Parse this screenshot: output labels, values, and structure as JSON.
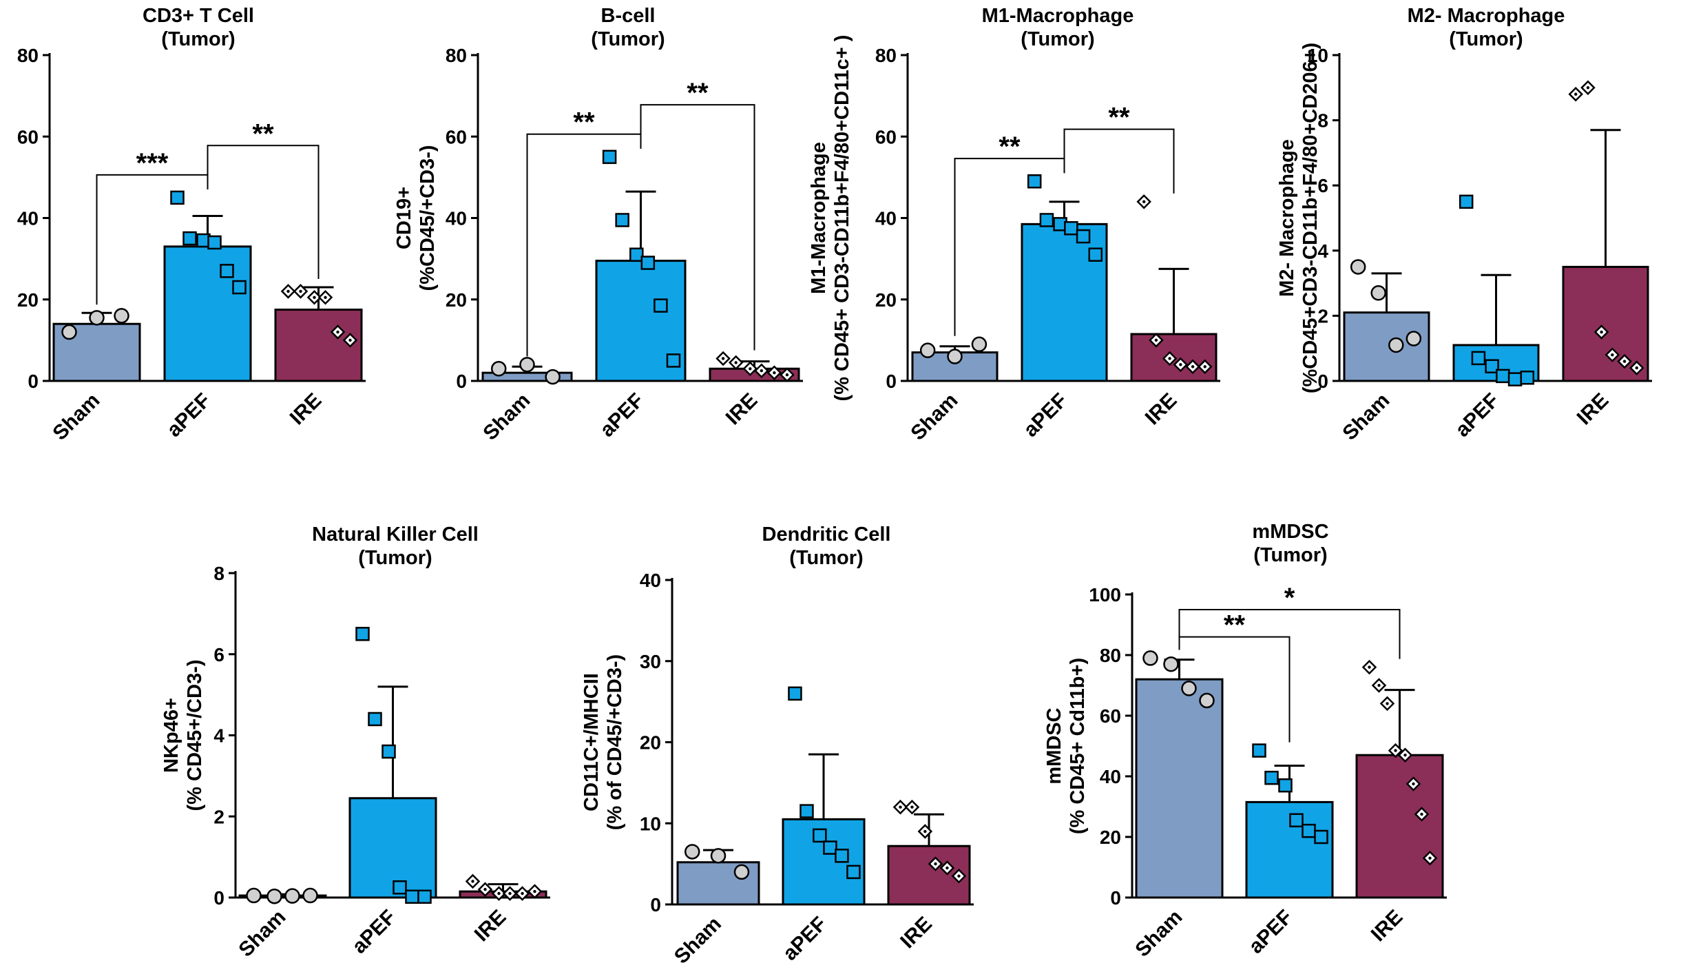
{
  "figure": {
    "colors": {
      "Sham": "#7f9cc4",
      "aPEF": "#10a4e6",
      "IRE": "#8c2f58",
      "sham_marker": "#d0d0d0",
      "ire_marker": "#ffffff"
    },
    "panels": [
      {
        "title": [
          "CD3+ T Cell",
          "(Tumor)"
        ],
        "ylabel": [],
        "ylim": [
          0,
          80
        ],
        "yticks": [
          0,
          20,
          40,
          60,
          80
        ],
        "groups": [
          {
            "name": "Sham",
            "mean": 14,
            "sd": 2.7,
            "points": [
              12,
              15.5,
              16
            ]
          },
          {
            "name": "aPEF",
            "mean": 33,
            "sd": 7.5,
            "points": [
              45,
              35,
              34.5,
              34,
              27,
              23
            ]
          },
          {
            "name": "IRE",
            "mean": 17.5,
            "sd": 5.5,
            "points": [
              22,
              22,
              20.5,
              20.5,
              12,
              10
            ]
          }
        ],
        "sig": [
          {
            "from": 0,
            "to": 1,
            "label": "***"
          },
          {
            "from": 1,
            "to": 2,
            "label": "**"
          }
        ]
      },
      {
        "title": [
          "B-cell",
          "(Tumor)"
        ],
        "ylabel": [
          "CD19+",
          "(%CD45/+CD3-)"
        ],
        "ylim": [
          0,
          80
        ],
        "yticks": [
          0,
          20,
          40,
          60,
          80
        ],
        "groups": [
          {
            "name": "Sham",
            "mean": 2,
            "sd": 1.5,
            "points": [
              3,
              4,
              1
            ]
          },
          {
            "name": "aPEF",
            "mean": 29.5,
            "sd": 17,
            "points": [
              55,
              39.5,
              31,
              29,
              18.5,
              5
            ]
          },
          {
            "name": "IRE",
            "mean": 3,
            "sd": 1.8,
            "points": [
              5.5,
              4.5,
              3,
              2.5,
              2,
              1.5
            ]
          }
        ],
        "sig": [
          {
            "from": 0,
            "to": 1,
            "label": "**"
          },
          {
            "from": 1,
            "to": 2,
            "label": "**"
          }
        ]
      },
      {
        "title": [
          "M1-Macrophage",
          "(Tumor)"
        ],
        "ylabel": [
          "M1-Macrophage",
          "(% CD45+ CD3-CD11b+F4/80+CD11c+ )"
        ],
        "ylim": [
          0,
          80
        ],
        "yticks": [
          0,
          20,
          40,
          60,
          80
        ],
        "groups": [
          {
            "name": "Sham",
            "mean": 7,
            "sd": 1.5,
            "points": [
              7.5,
              6,
              9
            ]
          },
          {
            "name": "aPEF",
            "mean": 38.5,
            "sd": 5.5,
            "points": [
              49,
              39.5,
              38.5,
              37.5,
              35.5,
              31
            ]
          },
          {
            "name": "IRE",
            "mean": 11.5,
            "sd": 16,
            "points": [
              44,
              10,
              5.5,
              4,
              3.5,
              3.5
            ]
          }
        ],
        "sig": [
          {
            "from": 0,
            "to": 1,
            "label": "**"
          },
          {
            "from": 1,
            "to": 2,
            "label": "**"
          }
        ]
      },
      {
        "title": [
          "M2- Macrophage",
          "(Tumor)"
        ],
        "ylabel": [
          "M2- Macrophage",
          "(%CD45+CD3-CD11b+F4/80+CD206+)"
        ],
        "ylim": [
          0,
          10
        ],
        "yticks": [
          0,
          2,
          4,
          6,
          8,
          10
        ],
        "groups": [
          {
            "name": "Sham",
            "mean": 2.1,
            "sd": 1.2,
            "points": [
              3.5,
              2.7,
              1.1,
              1.3
            ]
          },
          {
            "name": "aPEF",
            "mean": 1.1,
            "sd": 2.15,
            "points": [
              5.5,
              0.7,
              0.45,
              0.15,
              0.05,
              0.1
            ]
          },
          {
            "name": "IRE",
            "mean": 3.5,
            "sd": 4.2,
            "points": [
              8.8,
              9,
              1.5,
              0.8,
              0.6,
              0.4
            ]
          }
        ],
        "sig": []
      },
      {
        "title": [
          "Natural Killer Cell",
          "(Tumor)"
        ],
        "ylabel": [
          "NKp46+",
          "(% CD45+/CD3-)"
        ],
        "ylim": [
          0,
          8
        ],
        "yticks": [
          0,
          2,
          4,
          6,
          8
        ],
        "groups": [
          {
            "name": "Sham",
            "mean": 0.05,
            "sd": 0.03,
            "points": [
              0.05,
              0.03,
              0.04,
              0.05
            ]
          },
          {
            "name": "aPEF",
            "mean": 2.45,
            "sd": 2.75,
            "points": [
              6.5,
              4.4,
              3.6,
              0.25,
              0.02,
              0.02
            ]
          },
          {
            "name": "IRE",
            "mean": 0.15,
            "sd": 0.18,
            "points": [
              0.4,
              0.2,
              0.1,
              0.1,
              0.1,
              0.15
            ]
          }
        ],
        "sig": []
      },
      {
        "title": [
          "Dendritic Cell",
          "(Tumor)"
        ],
        "ylabel": [
          "CD11C+/MHCII",
          "(% of CD45/+CD3-)"
        ],
        "ylim": [
          0,
          40
        ],
        "yticks": [
          0,
          10,
          20,
          30,
          40
        ],
        "groups": [
          {
            "name": "Sham",
            "mean": 5.2,
            "sd": 1.5,
            "points": [
              6.5,
              6,
              4
            ]
          },
          {
            "name": "aPEF",
            "mean": 10.5,
            "sd": 8,
            "points": [
              26,
              11.5,
              8.5,
              7,
              6,
              4
            ]
          },
          {
            "name": "IRE",
            "mean": 7.2,
            "sd": 3.9,
            "points": [
              12,
              12,
              9,
              5,
              4.5,
              3.5
            ]
          }
        ],
        "sig": []
      },
      {
        "title": [
          "mMDSC",
          "(Tumor)"
        ],
        "ylabel": [
          "mMDSC",
          "(% CD45+ Cd11b+)"
        ],
        "ylim": [
          0,
          100
        ],
        "yticks": [
          0,
          20,
          40,
          60,
          80,
          100
        ],
        "groups": [
          {
            "name": "Sham",
            "mean": 72,
            "sd": 6.5,
            "points": [
              79,
              77,
              69,
              65
            ]
          },
          {
            "name": "aPEF",
            "mean": 31.5,
            "sd": 12,
            "points": [
              48.5,
              39.5,
              37,
              25.5,
              22,
              20
            ]
          },
          {
            "name": "IRE",
            "mean": 47,
            "sd": 21.5,
            "points": [
              76,
              70,
              64,
              48.5,
              47,
              37.5,
              27.5,
              13
            ]
          }
        ],
        "sig": [
          {
            "from": 0,
            "to": 1,
            "label": "**"
          },
          {
            "from": 0,
            "to": 2,
            "label": "*"
          }
        ]
      }
    ]
  },
  "chart_data": [
    {
      "type": "bar",
      "title": "CD3+ T Cell (Tumor)",
      "xlabel": "",
      "ylabel": "",
      "categories": [
        "Sham",
        "aPEF",
        "IRE"
      ],
      "values": [
        14,
        33,
        17.5
      ],
      "errors": [
        2.7,
        7.5,
        5.5
      ],
      "ylim": [
        0,
        80
      ],
      "annotations": [
        "***",
        "**"
      ]
    },
    {
      "type": "bar",
      "title": "B-cell (Tumor)",
      "xlabel": "",
      "ylabel": "CD19+ (%CD45/+CD3-)",
      "categories": [
        "Sham",
        "aPEF",
        "IRE"
      ],
      "values": [
        2,
        29.5,
        3
      ],
      "errors": [
        1.5,
        17,
        1.8
      ],
      "ylim": [
        0,
        80
      ],
      "annotations": [
        "**",
        "**"
      ]
    },
    {
      "type": "bar",
      "title": "M1-Macrophage (Tumor)",
      "xlabel": "",
      "ylabel": "M1-Macrophage (% CD45+ CD3-CD11b+F4/80+CD11c+ )",
      "categories": [
        "Sham",
        "aPEF",
        "IRE"
      ],
      "values": [
        7,
        38.5,
        11.5
      ],
      "errors": [
        1.5,
        5.5,
        16
      ],
      "ylim": [
        0,
        80
      ],
      "annotations": [
        "**",
        "**"
      ]
    },
    {
      "type": "bar",
      "title": "M2- Macrophage (Tumor)",
      "xlabel": "",
      "ylabel": "M2- Macrophage (%CD45+CD3-CD11b+F4/80+CD206+)",
      "categories": [
        "Sham",
        "aPEF",
        "IRE"
      ],
      "values": [
        2.1,
        1.1,
        3.5
      ],
      "errors": [
        1.2,
        2.15,
        4.2
      ],
      "ylim": [
        0,
        10
      ],
      "annotations": []
    },
    {
      "type": "bar",
      "title": "Natural Killer Cell (Tumor)",
      "xlabel": "",
      "ylabel": "NKp46+ (% CD45+/CD3-)",
      "categories": [
        "Sham",
        "aPEF",
        "IRE"
      ],
      "values": [
        0.05,
        2.45,
        0.15
      ],
      "errors": [
        0.03,
        2.75,
        0.18
      ],
      "ylim": [
        0,
        8
      ],
      "annotations": []
    },
    {
      "type": "bar",
      "title": "Dendritic Cell (Tumor)",
      "xlabel": "",
      "ylabel": "CD11C+/MHCII (% of CD45/+CD3-)",
      "categories": [
        "Sham",
        "aPEF",
        "IRE"
      ],
      "values": [
        5.2,
        10.5,
        7.2
      ],
      "errors": [
        1.5,
        8,
        3.9
      ],
      "ylim": [
        0,
        40
      ],
      "annotations": []
    },
    {
      "type": "bar",
      "title": "mMDSC (Tumor)",
      "xlabel": "",
      "ylabel": "mMDSC (% CD45+ Cd11b+)",
      "categories": [
        "Sham",
        "aPEF",
        "IRE"
      ],
      "values": [
        72,
        31.5,
        47
      ],
      "errors": [
        6.5,
        12,
        21.5
      ],
      "ylim": [
        0,
        100
      ],
      "annotations": [
        "**",
        "*"
      ]
    }
  ]
}
